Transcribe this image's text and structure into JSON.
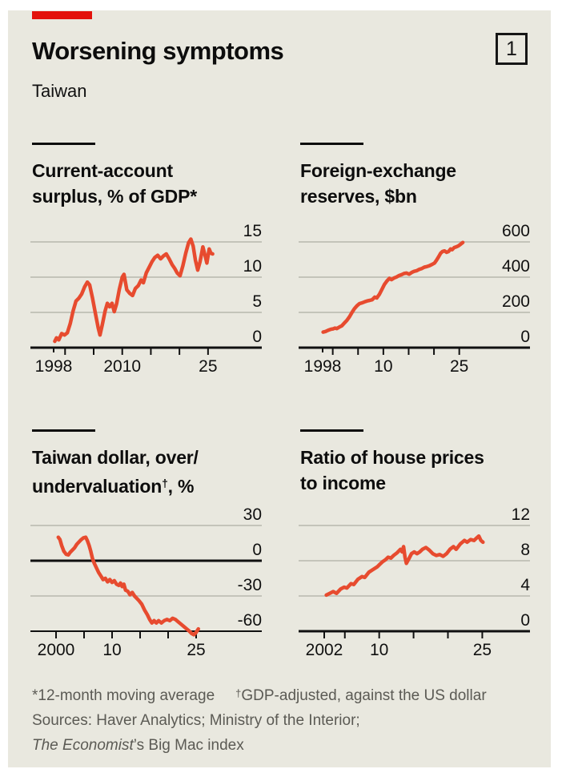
{
  "header": {
    "title": "Worsening symptoms",
    "index_label": "1",
    "subtitle": "Taiwan"
  },
  "colors": {
    "panel_bg": "#e9e8df",
    "tab_red": "#e3120b",
    "line_red": "#e74b2f",
    "grid_gray": "#b8b7ae",
    "axis_black": "#101010",
    "footnote_gray": "#5b5a54"
  },
  "footnotes": {
    "note1_star": "*12-month moving average",
    "note1_dagger_sup": "†",
    "note1_dagger_text": "GDP-adjusted, against the US dollar",
    "sources_line": "Sources: Haver Analytics; Ministry of the Interior;",
    "sources_italic": "The Economist",
    "sources_tail": "’s Big Mac index"
  },
  "chart_data": [
    {
      "type": "line",
      "title_lines": [
        "Current-account",
        "surplus, % of GDP*"
      ],
      "xlim": [
        1998,
        2026
      ],
      "ylim": [
        0,
        17
      ],
      "axis_value": 0,
      "zero_line": 0,
      "y_gridlines": [
        {
          "v": 15,
          "label": "15"
        },
        {
          "v": 10,
          "label": "10"
        },
        {
          "v": 5,
          "label": "5"
        },
        {
          "v": 0,
          "label": "0"
        }
      ],
      "x_ticks": [
        {
          "year": 1998,
          "label": "1998",
          "short": true
        },
        {
          "year": 2000
        },
        {
          "year": 2005
        },
        {
          "year": 2010,
          "label": "2010"
        },
        {
          "year": 2015
        },
        {
          "year": 2020
        },
        {
          "year": 2025,
          "label": "25"
        }
      ],
      "points": [
        [
          1998.2,
          0.9
        ],
        [
          1998.5,
          1.4
        ],
        [
          1998.9,
          1.1
        ],
        [
          1999.4,
          2.0
        ],
        [
          1999.9,
          1.8
        ],
        [
          2000.4,
          2.1
        ],
        [
          2000.9,
          3.4
        ],
        [
          2001.4,
          5.2
        ],
        [
          2001.9,
          6.6
        ],
        [
          2002.4,
          7.0
        ],
        [
          2002.9,
          7.6
        ],
        [
          2003.4,
          8.6
        ],
        [
          2003.9,
          9.3
        ],
        [
          2004.3,
          8.9
        ],
        [
          2004.8,
          7.0
        ],
        [
          2005.3,
          4.9
        ],
        [
          2005.8,
          2.8
        ],
        [
          2006.1,
          1.8
        ],
        [
          2006.5,
          3.2
        ],
        [
          2007.0,
          5.2
        ],
        [
          2007.4,
          6.3
        ],
        [
          2007.8,
          5.8
        ],
        [
          2008.2,
          6.3
        ],
        [
          2008.6,
          5.1
        ],
        [
          2009.0,
          6.2
        ],
        [
          2009.5,
          8.3
        ],
        [
          2010.0,
          10.0
        ],
        [
          2010.3,
          10.4
        ],
        [
          2010.8,
          8.2
        ],
        [
          2011.3,
          7.7
        ],
        [
          2011.8,
          7.4
        ],
        [
          2012.3,
          8.4
        ],
        [
          2012.8,
          8.8
        ],
        [
          2013.3,
          9.6
        ],
        [
          2013.7,
          9.2
        ],
        [
          2014.2,
          10.6
        ],
        [
          2014.7,
          11.4
        ],
        [
          2015.2,
          12.2
        ],
        [
          2015.7,
          12.8
        ],
        [
          2016.2,
          13.1
        ],
        [
          2016.7,
          12.6
        ],
        [
          2017.2,
          13.0
        ],
        [
          2017.7,
          13.3
        ],
        [
          2018.2,
          12.6
        ],
        [
          2018.7,
          11.8
        ],
        [
          2019.2,
          11.2
        ],
        [
          2019.6,
          10.6
        ],
        [
          2020.1,
          10.2
        ],
        [
          2020.6,
          11.6
        ],
        [
          2021.1,
          13.4
        ],
        [
          2021.6,
          14.9
        ],
        [
          2022.0,
          15.4
        ],
        [
          2022.4,
          14.4
        ],
        [
          2022.8,
          12.4
        ],
        [
          2023.2,
          11.0
        ],
        [
          2023.6,
          12.2
        ],
        [
          2024.1,
          14.3
        ],
        [
          2024.5,
          13.0
        ],
        [
          2024.8,
          12.0
        ],
        [
          2025.2,
          14.0
        ],
        [
          2025.5,
          13.4
        ],
        [
          2025.8,
          13.3
        ]
      ]
    },
    {
      "type": "line",
      "title_lines": [
        "Foreign-exchange",
        "reserves, $bn"
      ],
      "xlim": [
        1998,
        2026
      ],
      "ylim": [
        0,
        680
      ],
      "axis_value": 0,
      "zero_line": 0,
      "y_gridlines": [
        {
          "v": 600,
          "label": "600"
        },
        {
          "v": 400,
          "label": "400"
        },
        {
          "v": 200,
          "label": "200"
        },
        {
          "v": 0,
          "label": "0"
        }
      ],
      "x_ticks": [
        {
          "year": 1998,
          "label": "1998",
          "short": true
        },
        {
          "year": 2000
        },
        {
          "year": 2005
        },
        {
          "year": 2010,
          "label": "10"
        },
        {
          "year": 2015
        },
        {
          "year": 2020
        },
        {
          "year": 2025,
          "label": "25"
        }
      ],
      "points": [
        [
          1998.1,
          88
        ],
        [
          1998.6,
          92
        ],
        [
          1999.1,
          99
        ],
        [
          1999.6,
          104
        ],
        [
          2000.1,
          107
        ],
        [
          2000.4,
          111
        ],
        [
          2000.8,
          108
        ],
        [
          2001.3,
          117
        ],
        [
          2001.8,
          124
        ],
        [
          2002.3,
          140
        ],
        [
          2002.8,
          155
        ],
        [
          2003.3,
          175
        ],
        [
          2003.8,
          200
        ],
        [
          2004.3,
          222
        ],
        [
          2004.8,
          238
        ],
        [
          2005.3,
          250
        ],
        [
          2005.8,
          254
        ],
        [
          2006.3,
          260
        ],
        [
          2006.8,
          265
        ],
        [
          2007.3,
          268
        ],
        [
          2007.8,
          272
        ],
        [
          2008.3,
          287
        ],
        [
          2008.7,
          282
        ],
        [
          2009.2,
          302
        ],
        [
          2009.7,
          330
        ],
        [
          2010.2,
          358
        ],
        [
          2010.7,
          378
        ],
        [
          2011.2,
          393
        ],
        [
          2011.6,
          386
        ],
        [
          2012.1,
          395
        ],
        [
          2012.6,
          401
        ],
        [
          2013.1,
          409
        ],
        [
          2013.6,
          414
        ],
        [
          2014.1,
          421
        ],
        [
          2014.6,
          423
        ],
        [
          2015.1,
          417
        ],
        [
          2015.6,
          427
        ],
        [
          2016.1,
          433
        ],
        [
          2016.6,
          437
        ],
        [
          2017.1,
          444
        ],
        [
          2017.6,
          449
        ],
        [
          2018.1,
          457
        ],
        [
          2018.6,
          460
        ],
        [
          2019.1,
          465
        ],
        [
          2019.6,
          472
        ],
        [
          2020.1,
          480
        ],
        [
          2020.5,
          496
        ],
        [
          2020.9,
          515
        ],
        [
          2021.3,
          535
        ],
        [
          2021.7,
          546
        ],
        [
          2022.1,
          549
        ],
        [
          2022.5,
          541
        ],
        [
          2022.9,
          546
        ],
        [
          2023.3,
          560
        ],
        [
          2023.6,
          556
        ],
        [
          2024.0,
          568
        ],
        [
          2024.4,
          572
        ],
        [
          2024.8,
          577
        ],
        [
          2025.1,
          583
        ],
        [
          2025.4,
          590
        ],
        [
          2025.7,
          597
        ]
      ]
    },
    {
      "type": "line",
      "title_lines": [
        "Taiwan dollar, over/",
        "undervaluation†, %"
      ],
      "title2_pre": "undervaluation",
      "title2_sup": "†",
      "title2_post": ", %",
      "xlim": [
        2000,
        2026
      ],
      "ylim": [
        -60,
        40
      ],
      "axis_value": -60,
      "zero_line": 0,
      "y_gridlines": [
        {
          "v": 30,
          "label": "30"
        },
        {
          "v": 0,
          "label": "0"
        },
        {
          "v": -30,
          "label": "-30"
        },
        {
          "v": -60,
          "label": "-60"
        }
      ],
      "x_ticks": [
        {
          "year": 2000,
          "label": "2000"
        },
        {
          "year": 2005
        },
        {
          "year": 2010,
          "label": "10"
        },
        {
          "year": 2015
        },
        {
          "year": 2020
        },
        {
          "year": 2025,
          "label": "25"
        }
      ],
      "points": [
        [
          2000.4,
          20
        ],
        [
          2000.7,
          18
        ],
        [
          2001.0,
          13
        ],
        [
          2001.4,
          8
        ],
        [
          2001.8,
          5.5
        ],
        [
          2002.2,
          5
        ],
        [
          2002.5,
          7
        ],
        [
          2002.9,
          9
        ],
        [
          2003.3,
          11
        ],
        [
          2003.7,
          14
        ],
        [
          2004.1,
          16
        ],
        [
          2004.5,
          18
        ],
        [
          2004.9,
          19.5
        ],
        [
          2005.3,
          20
        ],
        [
          2005.6,
          17
        ],
        [
          2005.9,
          13
        ],
        [
          2006.2,
          8
        ],
        [
          2006.5,
          2
        ],
        [
          2006.8,
          -2
        ],
        [
          2007.2,
          -6
        ],
        [
          2007.6,
          -10
        ],
        [
          2008.0,
          -13
        ],
        [
          2008.4,
          -16
        ],
        [
          2008.8,
          -15
        ],
        [
          2009.2,
          -18
        ],
        [
          2009.6,
          -16
        ],
        [
          2010.0,
          -18.5
        ],
        [
          2010.4,
          -17
        ],
        [
          2010.8,
          -20
        ],
        [
          2011.2,
          -21
        ],
        [
          2011.5,
          -19
        ],
        [
          2011.8,
          -22
        ],
        [
          2012.1,
          -20
        ],
        [
          2012.4,
          -25
        ],
        [
          2012.8,
          -26
        ],
        [
          2013.2,
          -29
        ],
        [
          2013.6,
          -27
        ],
        [
          2014.0,
          -30
        ],
        [
          2014.4,
          -32
        ],
        [
          2014.8,
          -34
        ],
        [
          2015.3,
          -37
        ],
        [
          2015.8,
          -42
        ],
        [
          2016.3,
          -46
        ],
        [
          2016.7,
          -50
        ],
        [
          2017.1,
          -53
        ],
        [
          2017.5,
          -51
        ],
        [
          2017.9,
          -53
        ],
        [
          2018.3,
          -51
        ],
        [
          2018.8,
          -53
        ],
        [
          2019.3,
          -51
        ],
        [
          2019.8,
          -50
        ],
        [
          2020.3,
          -51
        ],
        [
          2020.8,
          -49
        ],
        [
          2021.3,
          -50
        ],
        [
          2021.8,
          -52
        ],
        [
          2022.3,
          -54
        ],
        [
          2022.8,
          -56
        ],
        [
          2023.3,
          -58
        ],
        [
          2023.8,
          -60
        ],
        [
          2024.2,
          -62
        ],
        [
          2024.6,
          -63
        ],
        [
          2025.0,
          -61
        ],
        [
          2025.4,
          -58
        ]
      ]
    },
    {
      "type": "line",
      "title_lines": [
        "Ratio of house prices",
        "to income"
      ],
      "xlim": [
        2002,
        2026
      ],
      "ylim": [
        0,
        13.5
      ],
      "axis_value": 0,
      "zero_line": 0,
      "y_gridlines": [
        {
          "v": 12,
          "label": "12"
        },
        {
          "v": 8,
          "label": "8"
        },
        {
          "v": 4,
          "label": "4"
        },
        {
          "v": 0,
          "label": "0"
        }
      ],
      "x_ticks": [
        {
          "year": 2002,
          "label": "2002"
        },
        {
          "year": 2005
        },
        {
          "year": 2010,
          "label": "10"
        },
        {
          "year": 2015
        },
        {
          "year": 2020
        },
        {
          "year": 2025,
          "label": "25"
        }
      ],
      "points": [
        [
          2002.3,
          4.1
        ],
        [
          2002.8,
          4.3
        ],
        [
          2003.3,
          4.5
        ],
        [
          2003.8,
          4.3
        ],
        [
          2004.4,
          4.8
        ],
        [
          2004.9,
          5.0
        ],
        [
          2005.3,
          4.9
        ],
        [
          2005.9,
          5.4
        ],
        [
          2006.3,
          5.3
        ],
        [
          2006.9,
          5.9
        ],
        [
          2007.5,
          6.2
        ],
        [
          2007.9,
          6.1
        ],
        [
          2008.5,
          6.7
        ],
        [
          2009.1,
          7.0
        ],
        [
          2009.7,
          7.3
        ],
        [
          2010.1,
          7.6
        ],
        [
          2010.5,
          7.9
        ],
        [
          2010.9,
          8.1
        ],
        [
          2011.3,
          8.4
        ],
        [
          2011.7,
          8.3
        ],
        [
          2012.1,
          8.6
        ],
        [
          2012.6,
          8.9
        ],
        [
          2013.1,
          9.3
        ],
        [
          2013.35,
          9.0
        ],
        [
          2013.55,
          9.6
        ],
        [
          2013.75,
          8.4
        ],
        [
          2013.95,
          7.7
        ],
        [
          2014.3,
          8.2
        ],
        [
          2014.7,
          8.8
        ],
        [
          2015.1,
          9.0
        ],
        [
          2015.5,
          8.8
        ],
        [
          2015.9,
          9.0
        ],
        [
          2016.3,
          9.3
        ],
        [
          2016.8,
          9.5
        ],
        [
          2017.3,
          9.2
        ],
        [
          2017.8,
          8.8
        ],
        [
          2018.3,
          8.6
        ],
        [
          2018.8,
          8.7
        ],
        [
          2019.3,
          8.5
        ],
        [
          2019.8,
          8.8
        ],
        [
          2020.3,
          9.3
        ],
        [
          2020.8,
          9.6
        ],
        [
          2021.2,
          9.3
        ],
        [
          2021.8,
          9.9
        ],
        [
          2022.4,
          10.3
        ],
        [
          2022.8,
          10.1
        ],
        [
          2023.3,
          10.4
        ],
        [
          2023.8,
          10.3
        ],
        [
          2024.2,
          10.6
        ],
        [
          2024.5,
          10.8
        ],
        [
          2024.8,
          10.3
        ],
        [
          2025.1,
          10.1
        ]
      ]
    }
  ]
}
